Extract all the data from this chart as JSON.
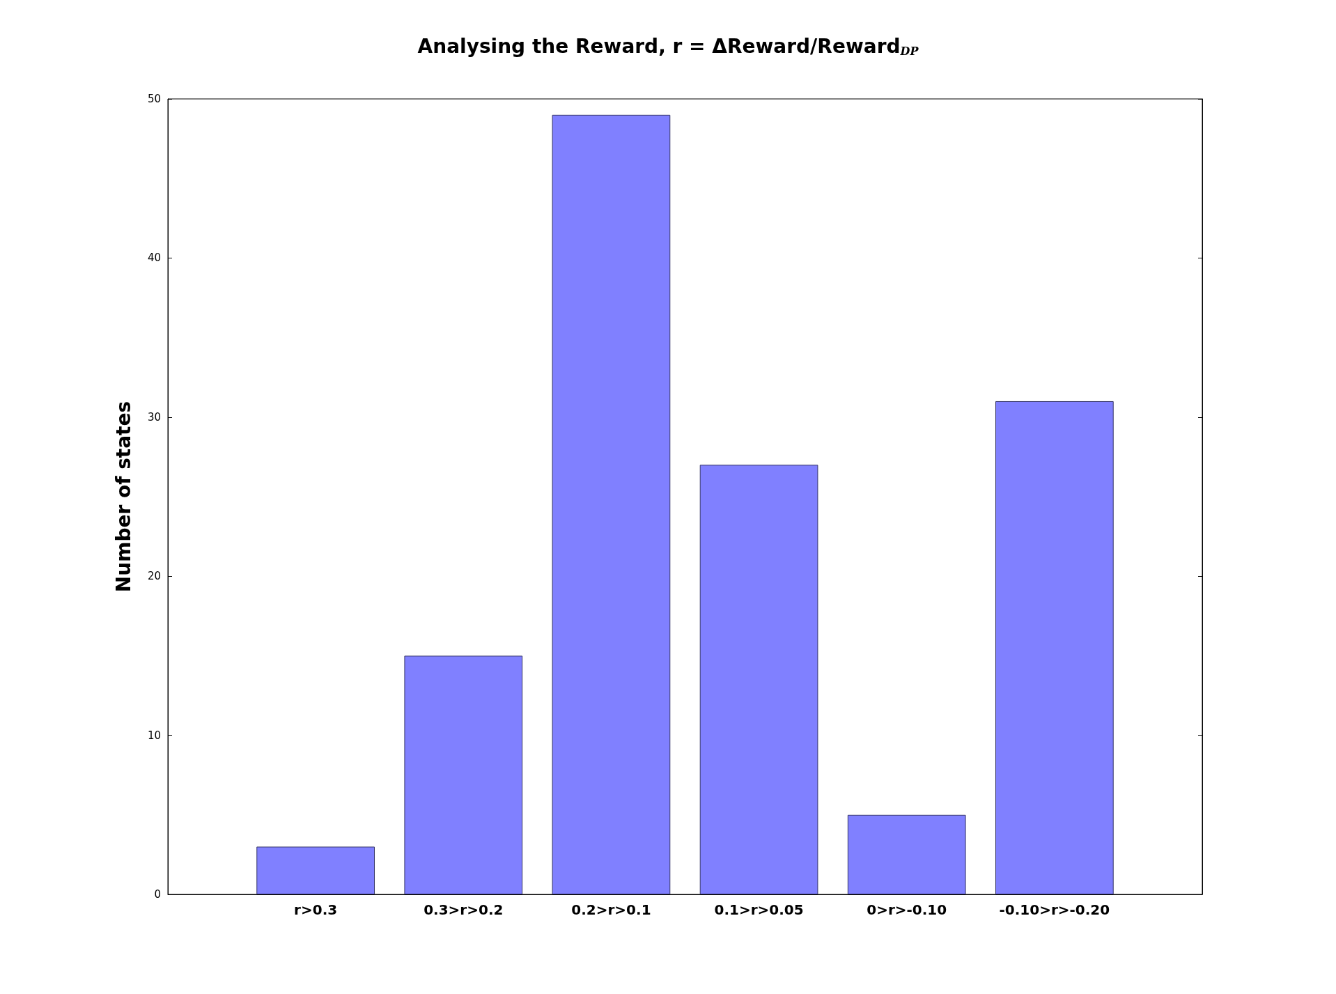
{
  "chart_data": {
    "type": "bar",
    "title": "Analysing the Reward, r = ΔReward/Reward$_{DP}$",
    "ylabel": "Number of states",
    "categories": [
      "r>0.3",
      "0.3>r>0.2",
      "0.2>r>0.1",
      "0.1>r>0.05",
      "0>r>-0.10",
      "-0.10>r>-0.20"
    ],
    "values": [
      3,
      15,
      49,
      27,
      5,
      31
    ],
    "color": "#8080ff",
    "ylim": [
      0,
      50
    ],
    "yticks": [
      0,
      10,
      20,
      30,
      40,
      50
    ],
    "grid": false
  }
}
